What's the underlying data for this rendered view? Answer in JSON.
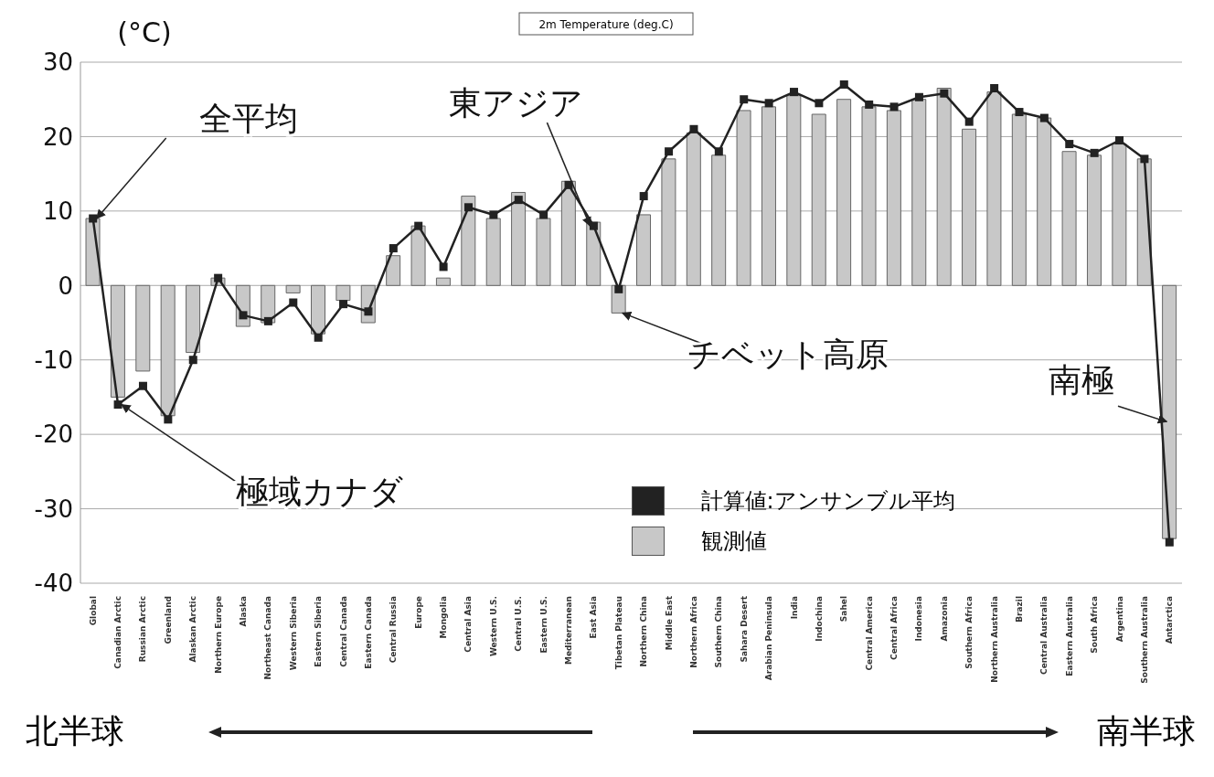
{
  "chart_data": {
    "type": "bar",
    "title": "2m Temperature (deg.C)",
    "ylabel": "(°C)",
    "categories": [
      "Global",
      "Canadian Arctic",
      "Russian Arctic",
      "Greenland",
      "Alaskan Arctic",
      "Northern Europe",
      "Alaska",
      "Northeast Canada",
      "Western Siberia",
      "Eastern Siberia",
      "Central Canada",
      "Eastern Canada",
      "Central Russia",
      "Europe",
      "Mongolia",
      "Central Asia",
      "Western U.S.",
      "Central U.S.",
      "Eastern U.S.",
      "Mediterranean",
      "East Asia",
      "Tibetan Plateau",
      "Northern China",
      "Middle East",
      "Northern Africa",
      "Southern China",
      "Sahara Desert",
      "Arabian Peninsula",
      "India",
      "Indochina",
      "Sahel",
      "Central America",
      "Central Africa",
      "Indonesia",
      "Amazonia",
      "Southern Africa",
      "Northern Australia",
      "Brazil",
      "Central Australia",
      "Eastern Australia",
      "South Africa",
      "Argentina",
      "Southern Australia",
      "Antarctica"
    ],
    "series": [
      {
        "name": "観測値",
        "type": "bar",
        "color": "#c8c8c8",
        "values": [
          9,
          -15,
          -11.5,
          -17.5,
          -9,
          1,
          -5.5,
          -5,
          -1,
          -6.5,
          -2,
          -5,
          4,
          8,
          1,
          12,
          9,
          12.5,
          9,
          14,
          8.5,
          -3.7,
          9.5,
          17,
          20.5,
          17.5,
          23.5,
          24,
          25.5,
          23,
          25,
          24,
          23.5,
          25,
          26.5,
          21,
          26,
          23,
          22.5,
          18,
          17.5,
          19,
          17,
          -34
        ]
      },
      {
        "name": "計算値:アンサンブル平均",
        "type": "line",
        "color": "#222222",
        "marker": "square",
        "values": [
          9,
          -16,
          -13.5,
          -18,
          -10,
          1,
          -4,
          -4.8,
          -2.3,
          -7,
          -2.5,
          -3.5,
          5,
          8,
          2.5,
          10.5,
          9.5,
          11.5,
          9.5,
          13.5,
          8,
          -0.5,
          12,
          18,
          21,
          18,
          25,
          24.5,
          26,
          24.5,
          27,
          24.3,
          24,
          25.3,
          25.8,
          22,
          26.5,
          23.3,
          22.5,
          19,
          17.8,
          19.5,
          17,
          -34.5
        ]
      }
    ],
    "ylim": [
      -40,
      30
    ],
    "yticks": [
      -40,
      -30,
      -20,
      -10,
      0,
      10,
      20,
      30
    ],
    "grid": "y",
    "legend": "bottom",
    "annotations": [
      {
        "text": "全平均",
        "x": "Global",
        "y": 9
      },
      {
        "text": "東アジア",
        "x": "East Asia",
        "y": 8
      },
      {
        "text": "極域カナダ",
        "x": "Canadian Arctic",
        "y": -16
      },
      {
        "text": "チベット高原",
        "x": "Tibetan Plateau",
        "y": -3.7
      },
      "南極",
      "北半球",
      "南半球"
    ]
  }
}
